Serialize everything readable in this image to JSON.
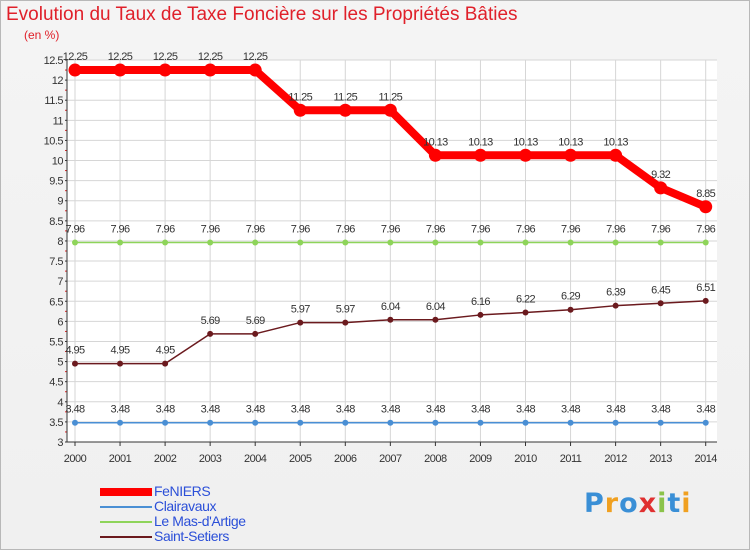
{
  "title": "Evolution du Taux de Taxe Foncière sur les Propriétés Bâties",
  "unit_label": "(en %)",
  "chart_data": {
    "type": "line",
    "title": "Evolution du Taux de Taxe Foncière sur les Propriétés Bâties",
    "ylabel": "(en %)",
    "xlabel": "",
    "ylim": [
      3,
      12.5
    ],
    "grid": true,
    "legend_position": "bottom-left",
    "categories": [
      "2000",
      "2001",
      "2002",
      "2003",
      "2004",
      "2005",
      "2006",
      "2007",
      "2008",
      "2009",
      "2010",
      "2011",
      "2012",
      "2013",
      "2014"
    ],
    "yticks": [
      "3",
      "3.5",
      "4",
      "4.5",
      "5",
      "5.5",
      "6",
      "6.5",
      "7",
      "7.5",
      "8",
      "8.5",
      "9",
      "9.5",
      "10",
      "10.5",
      "11",
      "11.5",
      "12",
      "12.5"
    ],
    "series": [
      {
        "name": "FeNIERS",
        "color": "#ff0000",
        "values": [
          12.25,
          12.25,
          12.25,
          12.25,
          12.25,
          11.25,
          11.25,
          11.25,
          10.13,
          10.13,
          10.13,
          10.13,
          10.13,
          9.32,
          8.85
        ],
        "labels": [
          "12.25",
          "12.25",
          "12.25",
          "12.25",
          "12.25",
          "11.25",
          "11.25",
          "11.25",
          "10.13",
          "10.13",
          "10.13",
          "10.13",
          "10.13",
          "9.32",
          "8.85"
        ]
      },
      {
        "name": "Clairavaux",
        "color": "#4a8fd4",
        "values": [
          3.48,
          3.48,
          3.48,
          3.48,
          3.48,
          3.48,
          3.48,
          3.48,
          3.48,
          3.48,
          3.48,
          3.48,
          3.48,
          3.48,
          3.48
        ],
        "labels": [
          "3.48",
          "3.48",
          "3.48",
          "3.48",
          "3.48",
          "3.48",
          "3.48",
          "3.48",
          "3.48",
          "3.48",
          "3.48",
          "3.48",
          "3.48",
          "3.48",
          "3.48"
        ]
      },
      {
        "name": "Le Mas-d'Artige",
        "color": "#8ed45a",
        "values": [
          7.96,
          7.96,
          7.96,
          7.96,
          7.96,
          7.96,
          7.96,
          7.96,
          7.96,
          7.96,
          7.96,
          7.96,
          7.96,
          7.96,
          7.96
        ],
        "labels": [
          "7.96",
          "7.96",
          "7.96",
          "7.96",
          "7.96",
          "7.96",
          "7.96",
          "7.96",
          "7.96",
          "7.96",
          "7.96",
          "7.96",
          "7.96",
          "7.96",
          "7.96"
        ]
      },
      {
        "name": "Saint-Setiers",
        "color": "#6b1a1e",
        "values": [
          4.95,
          4.95,
          4.95,
          5.69,
          5.69,
          5.97,
          5.97,
          6.04,
          6.04,
          6.16,
          6.22,
          6.29,
          6.39,
          6.45,
          6.51
        ],
        "labels": [
          "4.95",
          "4.95",
          "4.95",
          "5.69",
          "5.69",
          "5.97",
          "5.97",
          "6.04",
          "6.04",
          "6.16",
          "6.22",
          "6.29",
          "6.39",
          "6.45",
          "6.51"
        ]
      }
    ]
  },
  "legend": [
    {
      "label": "FeNIERS",
      "color": "#ff0000"
    },
    {
      "label": "Clairavaux",
      "color": "#4a8fd4"
    },
    {
      "label": "Le Mas-d'Artige",
      "color": "#8ed45a"
    },
    {
      "label": "Saint-Setiers",
      "color": "#6b1a1e"
    }
  ],
  "logo": {
    "text": "Proxiti",
    "letters": [
      "P",
      "r",
      "o",
      "x",
      "i",
      "t",
      "i"
    ],
    "colors": [
      "#3a8fd6",
      "#f0a020",
      "#3a8fd6",
      "#e03030",
      "#8bc34a",
      "#3a8fd6",
      "#f0a020"
    ]
  }
}
